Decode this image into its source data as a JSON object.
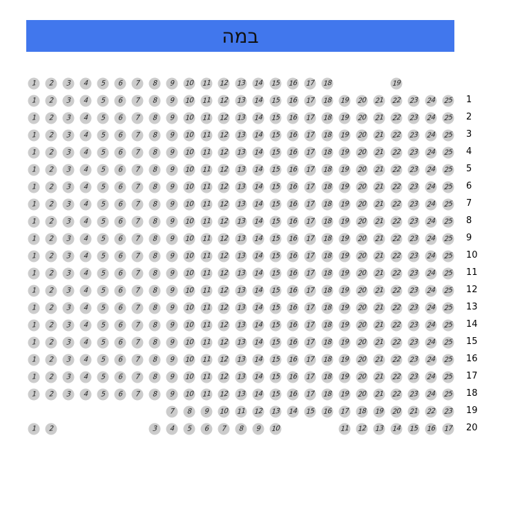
{
  "stage": {
    "label": "במה",
    "color": "#4177ED"
  },
  "seat_color": "#cccccc",
  "rows": [
    {
      "label": "",
      "seats": [
        1,
        2,
        3,
        4,
        5,
        6,
        7,
        8,
        9,
        10,
        11,
        12,
        13,
        14,
        15,
        16,
        17,
        18,
        null,
        null,
        null,
        19
      ]
    },
    {
      "label": "1",
      "seats": [
        1,
        2,
        3,
        4,
        5,
        6,
        7,
        8,
        9,
        10,
        11,
        12,
        13,
        14,
        15,
        16,
        17,
        18,
        19,
        20,
        21,
        22,
        23,
        24,
        25
      ]
    },
    {
      "label": "2",
      "seats": [
        1,
        2,
        3,
        4,
        5,
        6,
        7,
        8,
        9,
        10,
        11,
        12,
        13,
        14,
        15,
        16,
        17,
        18,
        19,
        20,
        21,
        22,
        23,
        24,
        25
      ]
    },
    {
      "label": "3",
      "seats": [
        1,
        2,
        3,
        4,
        5,
        6,
        7,
        8,
        9,
        10,
        11,
        12,
        13,
        14,
        15,
        16,
        17,
        18,
        19,
        20,
        21,
        22,
        23,
        24,
        25
      ]
    },
    {
      "label": "4",
      "seats": [
        1,
        2,
        3,
        4,
        5,
        6,
        7,
        8,
        9,
        10,
        11,
        12,
        13,
        14,
        15,
        16,
        17,
        18,
        19,
        20,
        21,
        22,
        23,
        24,
        25
      ]
    },
    {
      "label": "5",
      "seats": [
        1,
        2,
        3,
        4,
        5,
        6,
        7,
        8,
        9,
        10,
        11,
        12,
        13,
        14,
        15,
        16,
        17,
        18,
        19,
        20,
        21,
        22,
        23,
        24,
        25
      ]
    },
    {
      "label": "6",
      "seats": [
        1,
        2,
        3,
        4,
        5,
        6,
        7,
        8,
        9,
        10,
        11,
        12,
        13,
        14,
        15,
        16,
        17,
        18,
        19,
        20,
        21,
        22,
        23,
        24,
        25
      ]
    },
    {
      "label": "7",
      "seats": [
        1,
        2,
        3,
        4,
        5,
        6,
        7,
        8,
        9,
        10,
        11,
        12,
        13,
        14,
        15,
        16,
        17,
        18,
        19,
        20,
        21,
        22,
        23,
        24,
        25
      ]
    },
    {
      "label": "8",
      "seats": [
        1,
        2,
        3,
        4,
        5,
        6,
        7,
        8,
        9,
        10,
        11,
        12,
        13,
        14,
        15,
        16,
        17,
        18,
        19,
        20,
        21,
        22,
        23,
        24,
        25
      ]
    },
    {
      "label": "9",
      "seats": [
        1,
        2,
        3,
        4,
        5,
        6,
        7,
        8,
        9,
        10,
        11,
        12,
        13,
        14,
        15,
        16,
        17,
        18,
        19,
        20,
        21,
        22,
        23,
        24,
        25
      ]
    },
    {
      "label": "10",
      "seats": [
        1,
        2,
        3,
        4,
        5,
        6,
        7,
        8,
        9,
        10,
        11,
        12,
        13,
        14,
        15,
        16,
        17,
        18,
        19,
        20,
        21,
        22,
        23,
        24,
        25
      ]
    },
    {
      "label": "11",
      "seats": [
        1,
        2,
        3,
        4,
        5,
        6,
        7,
        8,
        9,
        10,
        11,
        12,
        13,
        14,
        15,
        16,
        17,
        18,
        19,
        20,
        21,
        22,
        23,
        24,
        25
      ]
    },
    {
      "label": "12",
      "seats": [
        1,
        2,
        3,
        4,
        5,
        6,
        7,
        8,
        9,
        10,
        11,
        12,
        13,
        14,
        15,
        16,
        17,
        18,
        19,
        20,
        21,
        22,
        23,
        24,
        25
      ]
    },
    {
      "label": "13",
      "seats": [
        1,
        2,
        3,
        4,
        5,
        6,
        7,
        8,
        9,
        10,
        11,
        12,
        13,
        14,
        15,
        16,
        17,
        18,
        19,
        20,
        21,
        22,
        23,
        24,
        25
      ]
    },
    {
      "label": "14",
      "seats": [
        1,
        2,
        3,
        4,
        5,
        6,
        7,
        8,
        9,
        10,
        11,
        12,
        13,
        14,
        15,
        16,
        17,
        18,
        19,
        20,
        21,
        22,
        23,
        24,
        25
      ]
    },
    {
      "label": "15",
      "seats": [
        1,
        2,
        3,
        4,
        5,
        6,
        7,
        8,
        9,
        10,
        11,
        12,
        13,
        14,
        15,
        16,
        17,
        18,
        19,
        20,
        21,
        22,
        23,
        24,
        25
      ]
    },
    {
      "label": "16",
      "seats": [
        1,
        2,
        3,
        4,
        5,
        6,
        7,
        8,
        9,
        10,
        11,
        12,
        13,
        14,
        15,
        16,
        17,
        18,
        19,
        20,
        21,
        22,
        23,
        24,
        25
      ]
    },
    {
      "label": "17",
      "seats": [
        1,
        2,
        3,
        4,
        5,
        6,
        7,
        8,
        9,
        10,
        11,
        12,
        13,
        14,
        15,
        16,
        17,
        18,
        19,
        20,
        21,
        22,
        23,
        24,
        25
      ]
    },
    {
      "label": "18",
      "seats": [
        1,
        2,
        3,
        4,
        5,
        6,
        7,
        8,
        9,
        10,
        11,
        12,
        13,
        14,
        15,
        16,
        17,
        18,
        19,
        20,
        21,
        22,
        23,
        24,
        25
      ]
    },
    {
      "label": "19",
      "seats": [
        null,
        null,
        null,
        null,
        null,
        null,
        null,
        null,
        7,
        8,
        9,
        10,
        11,
        12,
        13,
        14,
        15,
        16,
        17,
        18,
        19,
        20,
        21,
        22,
        23
      ]
    },
    {
      "label": "20",
      "seats": [
        1,
        2,
        null,
        null,
        null,
        null,
        null,
        3,
        4,
        5,
        6,
        7,
        8,
        9,
        10,
        null,
        null,
        null,
        11,
        12,
        13,
        14,
        15,
        16,
        17
      ]
    }
  ]
}
